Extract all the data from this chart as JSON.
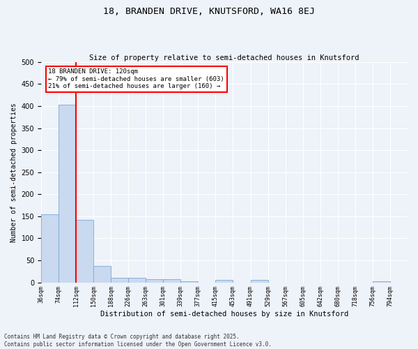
{
  "title1": "18, BRANDEN DRIVE, KNUTSFORD, WA16 8EJ",
  "title2": "Size of property relative to semi-detached houses in Knutsford",
  "xlabel": "Distribution of semi-detached houses by size in Knutsford",
  "ylabel": "Number of semi-detached properties",
  "bin_labels": [
    "36sqm",
    "74sqm",
    "112sqm",
    "150sqm",
    "188sqm",
    "226sqm",
    "263sqm",
    "301sqm",
    "339sqm",
    "377sqm",
    "415sqm",
    "453sqm",
    "491sqm",
    "529sqm",
    "567sqm",
    "605sqm",
    "642sqm",
    "680sqm",
    "718sqm",
    "756sqm",
    "794sqm"
  ],
  "bar_heights": [
    155,
    403,
    142,
    38,
    11,
    11,
    8,
    7,
    2,
    0,
    6,
    0,
    6,
    0,
    0,
    0,
    0,
    0,
    0,
    3,
    0
  ],
  "bar_color": "#c9d9f0",
  "bar_edge_color": "#7baad4",
  "red_line_bin_index": 2,
  "annotation_title": "18 BRANDEN DRIVE: 120sqm",
  "annotation_line1": "← 79% of semi-detached houses are smaller (603)",
  "annotation_line2": "21% of semi-detached houses are larger (160) →",
  "ylim": [
    0,
    500
  ],
  "yticks": [
    0,
    50,
    100,
    150,
    200,
    250,
    300,
    350,
    400,
    450,
    500
  ],
  "footer": "Contains HM Land Registry data © Crown copyright and database right 2025.\nContains public sector information licensed under the Open Government Licence v3.0.",
  "background_color": "#eef2f9"
}
